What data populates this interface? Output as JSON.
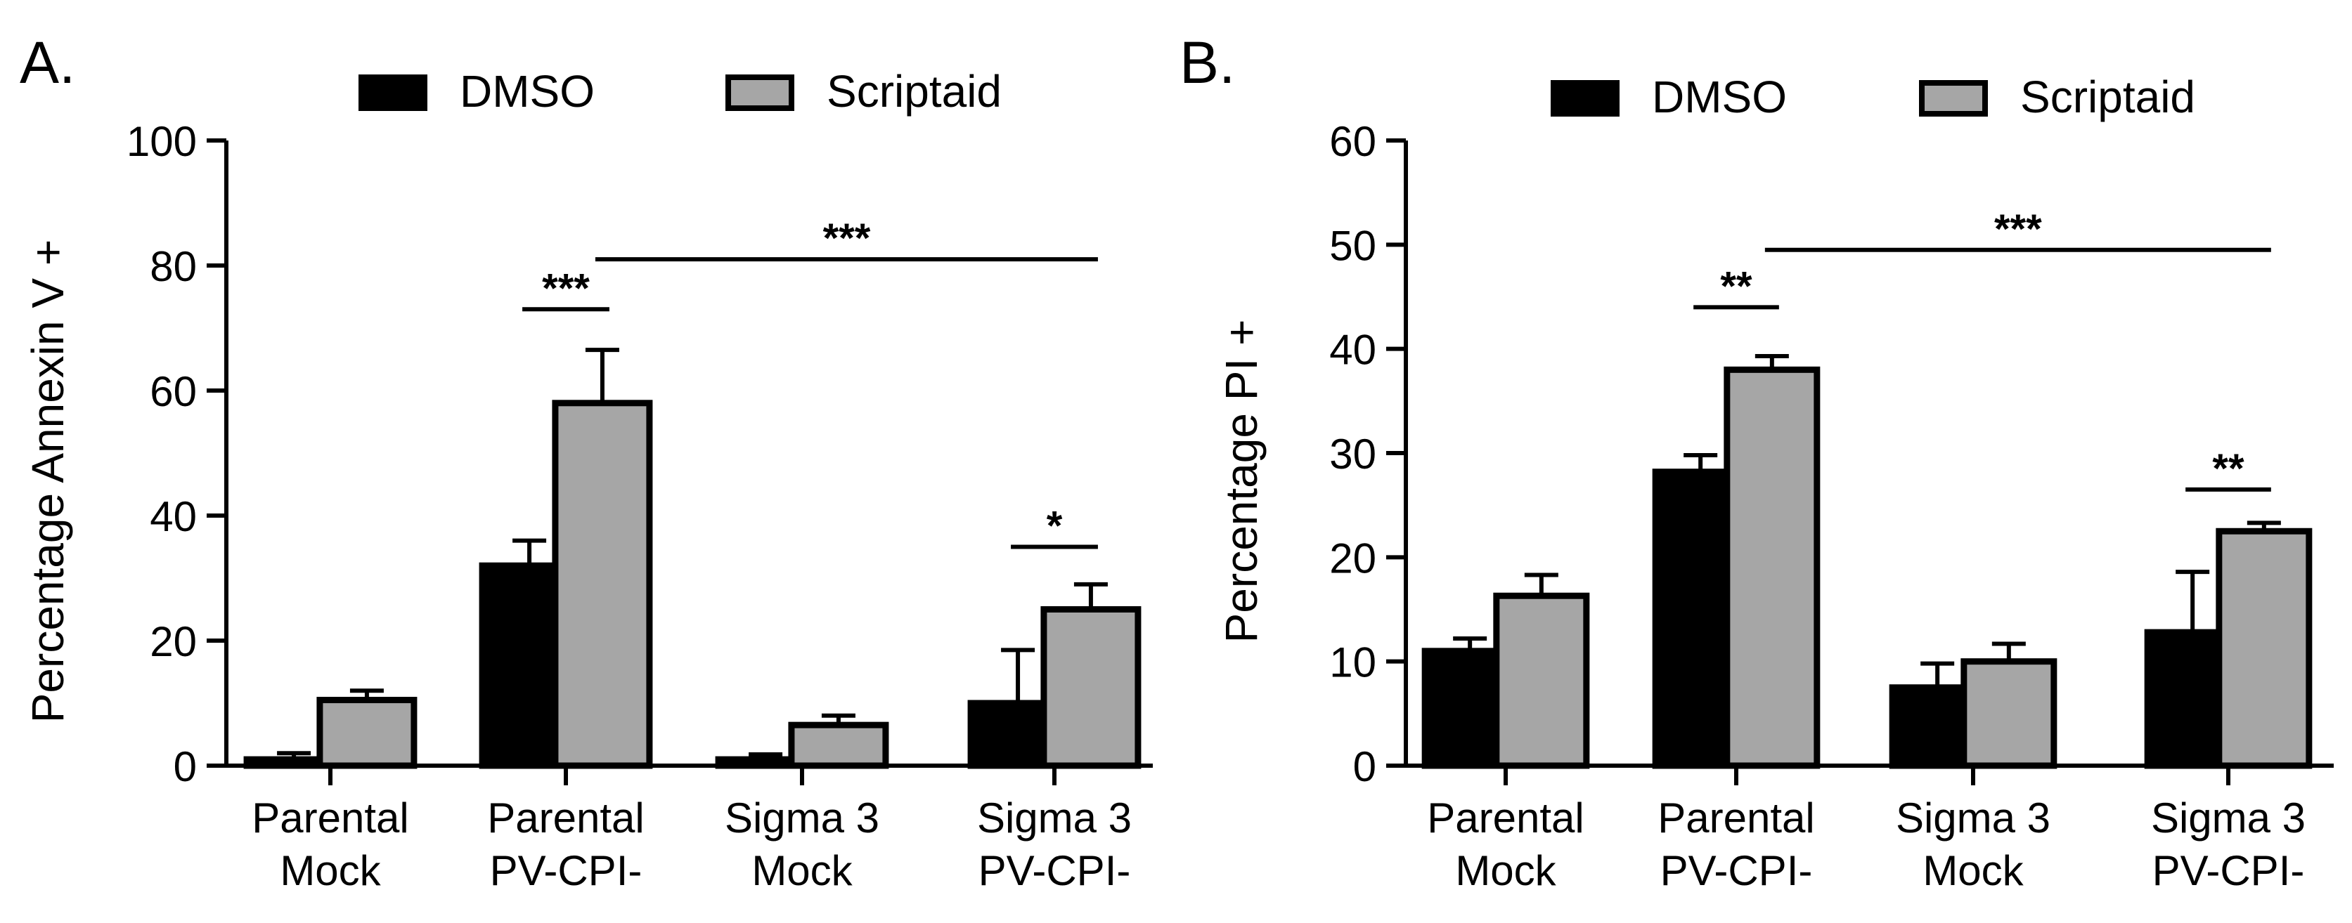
{
  "chart_data": [
    {
      "panel_label": "A.",
      "type": "bar",
      "title": "",
      "xlabel": "",
      "ylabel": "Percentage Annexin V +",
      "ylim": [
        0,
        100
      ],
      "yticks": [
        0,
        20,
        40,
        60,
        80,
        100
      ],
      "categories": [
        [
          "Parental",
          "Mock"
        ],
        [
          "Parental",
          "PV-CPI-"
        ],
        [
          "Sigma 3",
          "Mock"
        ],
        [
          "Sigma 3",
          "PV-CPI-"
        ]
      ],
      "series": [
        {
          "name": "DMSO",
          "color": "#000000",
          "values": [
            1,
            32,
            1,
            10
          ],
          "errors": [
            1,
            4,
            0.8,
            8.5
          ]
        },
        {
          "name": "Scriptaid",
          "color": "#a6a6a6",
          "values": [
            10.5,
            58,
            6.5,
            25
          ],
          "errors": [
            1.5,
            8.5,
            1.5,
            4
          ]
        }
      ],
      "legend": {
        "position": "top",
        "entries": [
          "DMSO",
          "Scriptaid"
        ]
      },
      "annotations": [
        {
          "text": "***",
          "from": [
            1,
            0
          ],
          "to": [
            1,
            1
          ],
          "y": 73
        },
        {
          "text": "***",
          "from": [
            1,
            1
          ],
          "to": [
            3,
            1
          ],
          "y": 81
        },
        {
          "text": "*",
          "from": [
            3,
            0
          ],
          "to": [
            3,
            1
          ],
          "y": 35
        }
      ]
    },
    {
      "panel_label": "B.",
      "type": "bar",
      "title": "",
      "xlabel": "",
      "ylabel": "Percentage PI +",
      "ylim": [
        0,
        60
      ],
      "yticks": [
        0,
        10,
        20,
        30,
        40,
        50,
        60
      ],
      "categories": [
        [
          "Parental",
          "Mock"
        ],
        [
          "Parental",
          "PV-CPI-"
        ],
        [
          "Sigma 3",
          "Mock"
        ],
        [
          "Sigma 3",
          "PV-CPI-"
        ]
      ],
      "series": [
        {
          "name": "DMSO",
          "color": "#000000",
          "values": [
            11,
            28.2,
            7.5,
            12.8
          ],
          "errors": [
            1.2,
            1.6,
            2.3,
            5.8
          ]
        },
        {
          "name": "Scriptaid",
          "color": "#a6a6a6",
          "values": [
            16.3,
            38,
            10,
            22.5
          ],
          "errors": [
            2,
            1.3,
            1.7,
            0.8
          ]
        }
      ],
      "legend": {
        "position": "top",
        "entries": [
          "DMSO",
          "Scriptaid"
        ]
      },
      "annotations": [
        {
          "text": "**",
          "from": [
            1,
            0
          ],
          "to": [
            1,
            1
          ],
          "y": 44
        },
        {
          "text": "***",
          "from": [
            1,
            1
          ],
          "to": [
            3,
            1
          ],
          "y": 49.5
        },
        {
          "text": "**",
          "from": [
            3,
            0
          ],
          "to": [
            3,
            1
          ],
          "y": 26.5
        }
      ]
    }
  ]
}
